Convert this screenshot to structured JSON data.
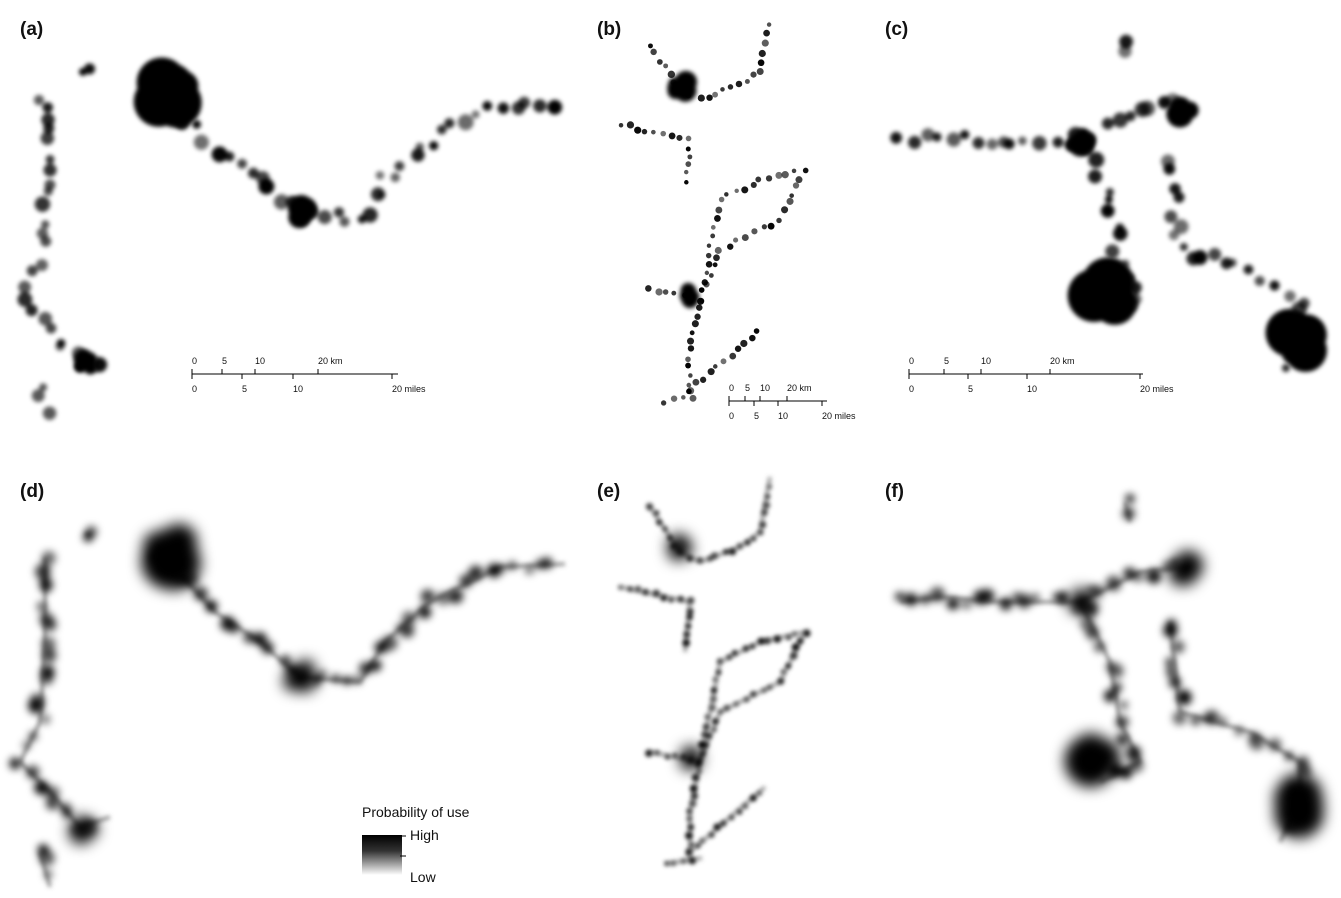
{
  "panels": [
    {
      "label": "(a)",
      "scale_bar": {
        "km_labels": [
          "0",
          "5",
          "10",
          "20 km"
        ],
        "mile_labels": [
          "0",
          "5",
          "10",
          "20 miles"
        ]
      }
    },
    {
      "label": "(b)",
      "scale_bar": {
        "km_labels": [
          "0",
          "5",
          "10",
          "20 km"
        ],
        "mile_labels": [
          "0",
          "5",
          "10",
          "20 miles"
        ]
      }
    },
    {
      "label": "(c)",
      "scale_bar": {
        "km_labels": [
          "0",
          "5",
          "10",
          "20 km"
        ],
        "mile_labels": [
          "0",
          "5",
          "10",
          "20 miles"
        ]
      }
    },
    {
      "label": "(d)"
    },
    {
      "label": "(e)"
    },
    {
      "label": "(f)"
    }
  ],
  "legend": {
    "title": "Probability of use",
    "high": "High",
    "low": "Low"
  }
}
